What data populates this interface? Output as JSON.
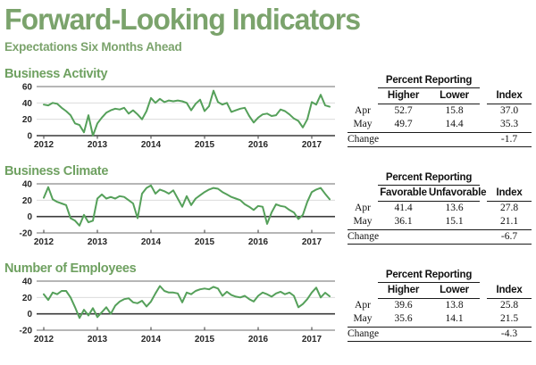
{
  "page": {
    "title": "Forward-Looking Indicators",
    "subtitle": "Expectations Six Months Ahead"
  },
  "colors": {
    "title_green": "#7ba36c",
    "heading_green": "#6fa161",
    "line_green": "#55a05a",
    "grid_light": "#dcdcdc",
    "grid_mid": "#8a8a8a",
    "axis_dark": "#3a3a3a",
    "tick_dark": "#555555",
    "text_dark": "#262626"
  },
  "chart_data": [
    {
      "type": "line",
      "title": "Business Activity",
      "x_start": "2012-01",
      "x_frequency": "monthly",
      "x_tick_labels": [
        "2012",
        "2013",
        "2014",
        "2015",
        "2016",
        "2017"
      ],
      "ylim": [
        0,
        60
      ],
      "yticks": [
        60,
        40,
        20,
        0
      ],
      "grid_light": [
        40,
        20
      ],
      "legend": "none",
      "values": [
        38,
        37,
        40,
        39,
        34,
        30,
        25,
        15,
        13,
        4,
        25,
        0,
        15,
        22,
        28,
        31,
        33,
        32,
        34,
        27,
        31,
        26,
        20,
        30,
        46,
        40,
        45,
        41,
        43,
        42,
        43,
        42,
        40,
        31,
        39,
        44,
        30,
        36,
        55,
        41,
        38,
        40,
        29,
        31,
        33,
        34,
        24,
        16,
        22,
        26,
        27,
        24,
        25,
        32,
        30,
        26,
        21,
        18,
        10,
        20,
        41,
        38,
        50,
        37,
        35.3
      ]
    },
    {
      "type": "line",
      "title": "Business Climate",
      "x_start": "2012-01",
      "x_frequency": "monthly",
      "x_tick_labels": [
        "2012",
        "2013",
        "2014",
        "2015",
        "2016",
        "2017"
      ],
      "ylim": [
        -20,
        40
      ],
      "yticks": [
        40,
        20,
        0,
        -20
      ],
      "grid_light": [
        20
      ],
      "legend": "none",
      "values": [
        23,
        36,
        21,
        18,
        16,
        14,
        -2,
        -5,
        -11,
        2,
        -7,
        -5,
        22,
        27,
        22,
        24,
        22,
        25,
        24,
        20,
        16,
        -2,
        28,
        35,
        38,
        28,
        33,
        31,
        28,
        32,
        22,
        12,
        25,
        14,
        22,
        26,
        30,
        33,
        35,
        34,
        30,
        27,
        24,
        22,
        20,
        15,
        12,
        8,
        13,
        12,
        -9,
        5,
        15,
        13,
        12,
        8,
        5,
        -3,
        2,
        18,
        30,
        33,
        35,
        27.8,
        21.1
      ]
    },
    {
      "type": "line",
      "title": "Number of Employees",
      "x_start": "2012-01",
      "x_frequency": "monthly",
      "x_tick_labels": [
        "2012",
        "2013",
        "2014",
        "2015",
        "2016",
        "2017"
      ],
      "ylim": [
        -20,
        40
      ],
      "yticks": [
        40,
        20,
        0,
        -20
      ],
      "grid_light": [
        20
      ],
      "legend": "none",
      "values": [
        24,
        17,
        26,
        24,
        28,
        28,
        20,
        8,
        -5,
        5,
        -2,
        7,
        -4,
        2,
        8,
        0,
        10,
        15,
        18,
        19,
        14,
        13,
        16,
        9,
        15,
        25,
        34,
        28,
        26,
        26,
        25,
        14,
        26,
        24,
        28,
        30,
        31,
        30,
        33,
        31,
        22,
        27,
        23,
        21,
        20,
        22,
        18,
        15,
        22,
        26,
        24,
        21,
        25,
        27,
        24,
        26,
        22,
        8,
        12,
        18,
        26,
        32,
        20,
        25.8,
        21.5
      ]
    }
  ],
  "tables": [
    {
      "group_header": "Percent Reporting",
      "columns": [
        "Higher",
        "Lower",
        "Index"
      ],
      "rows": [
        {
          "label": "Apr",
          "v1": "52.7",
          "v2": "15.8",
          "v3": "37.0"
        },
        {
          "label": "May",
          "v1": "49.7",
          "v2": "14.4",
          "v3": "35.3"
        }
      ],
      "change_label": "Change",
      "change_value": "-1.7"
    },
    {
      "group_header": "Percent Reporting",
      "columns": [
        "Favorable",
        "Unfavorable",
        "Index"
      ],
      "rows": [
        {
          "label": "Apr",
          "v1": "41.4",
          "v2": "13.6",
          "v3": "27.8"
        },
        {
          "label": "May",
          "v1": "36.1",
          "v2": "15.1",
          "v3": "21.1"
        }
      ],
      "change_label": "Change",
      "change_value": "-6.7"
    },
    {
      "group_header": "Percent Reporting",
      "columns": [
        "Higher",
        "Lower",
        "Index"
      ],
      "rows": [
        {
          "label": "Apr",
          "v1": "39.6",
          "v2": "13.8",
          "v3": "25.8"
        },
        {
          "label": "May",
          "v1": "35.6",
          "v2": "14.1",
          "v3": "21.5"
        }
      ],
      "change_label": "Change",
      "change_value": "-4.3"
    }
  ]
}
